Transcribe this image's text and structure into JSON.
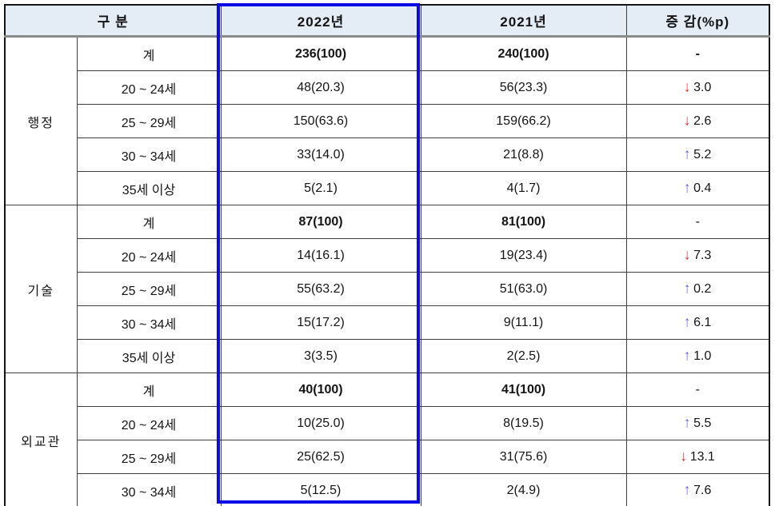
{
  "header": {
    "col_category": "구 분",
    "col_2022": "2022년",
    "col_2021": "2021년",
    "col_change": "증 감(%p)"
  },
  "groups": [
    {
      "name": "행정",
      "rows": [
        {
          "label": "계",
          "v2022": "236(100)",
          "v2021": "240(100)",
          "change": "-",
          "dir": "none",
          "bold": true,
          "change_bold": true
        },
        {
          "label": "20 ~ 24세",
          "v2022": "48(20.3)",
          "v2021": "56(23.3)",
          "change": "3.0",
          "dir": "down"
        },
        {
          "label": "25 ~ 29세",
          "v2022": "150(63.6)",
          "v2021": "159(66.2)",
          "change": "2.6",
          "dir": "down"
        },
        {
          "label": "30 ~ 34세",
          "v2022": "33(14.0)",
          "v2021": "21(8.8)",
          "change": "5.2",
          "dir": "up"
        },
        {
          "label": "35세 이상",
          "v2022": "5(2.1)",
          "v2021": "4(1.7)",
          "change": "0.4",
          "dir": "up"
        }
      ]
    },
    {
      "name": "기술",
      "rows": [
        {
          "label": "계",
          "v2022": "87(100)",
          "v2021": "81(100)",
          "change": "-",
          "dir": "none",
          "bold": true
        },
        {
          "label": "20 ~ 24세",
          "v2022": "14(16.1)",
          "v2021": "19(23.4)",
          "change": "7.3",
          "dir": "down"
        },
        {
          "label": "25 ~ 29세",
          "v2022": "55(63.2)",
          "v2021": "51(63.0)",
          "change": "0.2",
          "dir": "up"
        },
        {
          "label": "30 ~ 34세",
          "v2022": "15(17.2)",
          "v2021": "9(11.1)",
          "change": "6.1",
          "dir": "up"
        },
        {
          "label": "35세 이상",
          "v2022": "3(3.5)",
          "v2021": "2(2.5)",
          "change": "1.0",
          "dir": "up"
        }
      ]
    },
    {
      "name": "외교관",
      "rows": [
        {
          "label": "계",
          "v2022": "40(100)",
          "v2021": "41(100)",
          "change": "-",
          "dir": "none",
          "bold": true
        },
        {
          "label": "20 ~ 24세",
          "v2022": "10(25.0)",
          "v2021": "8(19.5)",
          "change": "5.5",
          "dir": "up"
        },
        {
          "label": "25 ~ 29세",
          "v2022": "25(62.5)",
          "v2021": "31(75.6)",
          "change": "13.1",
          "dir": "down"
        },
        {
          "label": "30 ~ 34세",
          "v2022": "5(12.5)",
          "v2021": "2(4.9)",
          "change": "7.6",
          "dir": "up"
        }
      ]
    }
  ],
  "icons": {
    "up_arrow": "↑",
    "down_arrow": "↓"
  },
  "colors": {
    "highlight_border": "#0a0ae6",
    "up_arrow": "#5b5bf0",
    "down_arrow": "#ee1c25",
    "header_bg": "#e4ecf6",
    "grid_line": "#3f3f3f",
    "header_underline": "#8a8a8a"
  }
}
